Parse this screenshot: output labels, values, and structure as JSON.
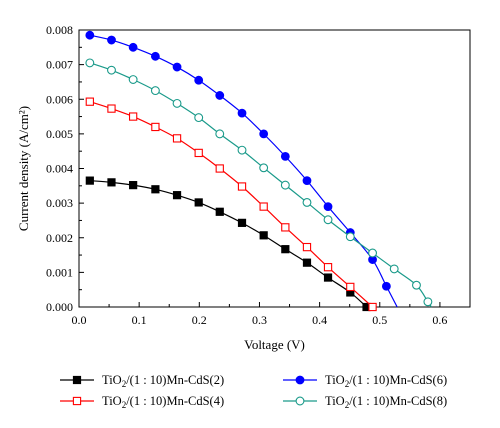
{
  "chart_data": {
    "type": "line",
    "xlabel": "Voltage (V)",
    "ylabel": "Current density (A/cm²)",
    "xlim": [
      0.0,
      0.65
    ],
    "ylim": [
      0.0,
      0.008
    ],
    "xticks": [
      0.0,
      0.1,
      0.2,
      0.3,
      0.4,
      0.5,
      0.6
    ],
    "xtick_labels": [
      "0.0",
      "0.1",
      "0.2",
      "0.3",
      "0.4",
      "0.5",
      "0.6"
    ],
    "yticks": [
      0.0,
      0.001,
      0.002,
      0.003,
      0.004,
      0.005,
      0.006,
      0.007,
      0.008
    ],
    "ytick_labels": [
      "0.000",
      "0.001",
      "0.002",
      "0.003",
      "0.004",
      "0.005",
      "0.006",
      "0.007",
      "0.008"
    ],
    "grid": false,
    "legend_position": "bottom",
    "series": [
      {
        "name": "TiO2/(1:10)Mn-CdS(2)",
        "legend_text": "TiO2/(1 : 10)Mn-CdS(2)",
        "color": "#000000",
        "marker": "filled-square",
        "x": [
          0.018,
          0.054,
          0.09,
          0.127,
          0.163,
          0.199,
          0.234,
          0.271,
          0.307,
          0.343,
          0.379,
          0.414,
          0.451,
          0.478
        ],
        "y": [
          0.00365,
          0.0036,
          0.00352,
          0.0034,
          0.00323,
          0.00302,
          0.00275,
          0.00243,
          0.00207,
          0.00167,
          0.00128,
          0.00085,
          0.00042,
          0.0
        ]
      },
      {
        "name": "TiO2/(1:10)Mn-CdS(4)",
        "legend_text": "TiO2/(1 : 10)Mn-CdS(4)",
        "color": "#ff0000",
        "marker": "open-square",
        "x": [
          0.018,
          0.054,
          0.09,
          0.127,
          0.163,
          0.199,
          0.234,
          0.271,
          0.307,
          0.343,
          0.379,
          0.414,
          0.451,
          0.488
        ],
        "y": [
          0.00593,
          0.00573,
          0.0055,
          0.0052,
          0.00487,
          0.00445,
          0.004,
          0.00348,
          0.0029,
          0.0023,
          0.00173,
          0.00115,
          0.00058,
          0.0
        ]
      },
      {
        "name": "TiO2/(1:10)Mn-CdS(6)",
        "legend_text": "TiO2/(1 : 10)Mn-CdS(6)",
        "color": "#0000ff",
        "marker": "filled-circle",
        "x": [
          0.018,
          0.054,
          0.09,
          0.127,
          0.163,
          0.199,
          0.234,
          0.271,
          0.307,
          0.343,
          0.379,
          0.414,
          0.451,
          0.488,
          0.511
        ],
        "y": [
          0.00785,
          0.00771,
          0.0075,
          0.00724,
          0.00693,
          0.00655,
          0.00611,
          0.0056,
          0.005,
          0.00435,
          0.00365,
          0.0029,
          0.00215,
          0.00137,
          0.0006
        ]
      },
      {
        "name": "TiO2/(1:10)Mn-CdS(8)",
        "legend_text": "TiO2/(1 : 10)Mn-CdS(8)",
        "color": "#1a9a8a",
        "marker": "open-circle",
        "x": [
          0.018,
          0.054,
          0.09,
          0.127,
          0.163,
          0.199,
          0.234,
          0.271,
          0.307,
          0.343,
          0.379,
          0.414,
          0.451,
          0.488,
          0.524,
          0.561,
          0.58
        ],
        "y": [
          0.00705,
          0.00684,
          0.00657,
          0.00625,
          0.00588,
          0.00547,
          0.005,
          0.00453,
          0.00402,
          0.00352,
          0.00302,
          0.00252,
          0.00203,
          0.00156,
          0.0011,
          0.00063,
          0.00015
        ]
      }
    ]
  }
}
